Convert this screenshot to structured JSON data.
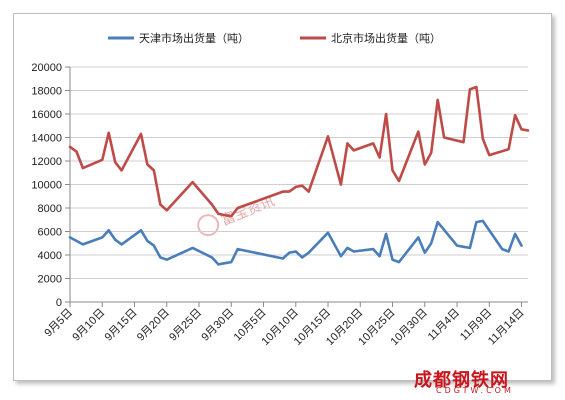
{
  "chart_data": {
    "type": "line",
    "title": "",
    "xlabel": "",
    "ylabel": "",
    "ylim": [
      0,
      20000
    ],
    "y_ticks": [
      0,
      2000,
      4000,
      6000,
      8000,
      10000,
      12000,
      14000,
      16000,
      18000,
      20000
    ],
    "x_tick_labels": [
      "9月5日",
      "9月10日",
      "9月15日",
      "9月20日",
      "9月25日",
      "9月30日",
      "10月5日",
      "10月10日",
      "10月15日",
      "10月20日",
      "10月25日",
      "10月30日",
      "11月4日",
      "11月9日",
      "11月14日"
    ],
    "x_start": "9月5日",
    "x_end": "11月15日",
    "grid": "horizontal",
    "legend_position": "top",
    "series": [
      {
        "name": "天津市场出货量（吨）",
        "color": "#4a7ebb",
        "x": [
          "9月5日",
          "9月7日",
          "9月10日",
          "9月11日",
          "9月12日",
          "9月13日",
          "9月16日",
          "9月17日",
          "9月18日",
          "9月19日",
          "9月20日",
          "9月24日",
          "9月27日",
          "9月28日",
          "9月29日",
          "9月30日",
          "10月1日",
          "10月8日",
          "10月9日",
          "10月10日",
          "10月11日",
          "10月12日",
          "10月15日",
          "10月17日",
          "10月18日",
          "10月19日",
          "10月22日",
          "10月23日",
          "10月24日",
          "10月25日",
          "10月26日",
          "10月29日",
          "10月30日",
          "10月31日",
          "11月1日",
          "11月4日",
          "11月5日",
          "11月6日",
          "11月7日",
          "11月8日",
          "11月11日",
          "11月12日",
          "11月13日",
          "11月14日"
        ],
        "values": [
          5500,
          4900,
          5500,
          6100,
          5300,
          4900,
          6100,
          5200,
          4800,
          3800,
          3600,
          4600,
          3800,
          3200,
          3300,
          3400,
          4500,
          3700,
          4200,
          4300,
          3800,
          4200,
          5900,
          3900,
          4600,
          4300,
          4500,
          3900,
          5800,
          3600,
          3400,
          5500,
          4200,
          5000,
          6800,
          4800,
          4700,
          4600,
          6800,
          6900,
          4500,
          4300,
          5800,
          4800
        ]
      },
      {
        "name": "北京市场出货量（吨）",
        "color": "#be4b48",
        "x": [
          "9月5日",
          "9月6日",
          "9月7日",
          "9月10日",
          "9月11日",
          "9月12日",
          "9月13日",
          "9月16日",
          "9月17日",
          "9月18日",
          "9月19日",
          "9月20日",
          "9月24日",
          "9月27日",
          "9月28日",
          "9月29日",
          "9月30日",
          "10月1日",
          "10月8日",
          "10月9日",
          "10月10日",
          "10月11日",
          "10月12日",
          "10月15日",
          "10月17日",
          "10月18日",
          "10月19日",
          "10月22日",
          "10月23日",
          "10月24日",
          "10月25日",
          "10月26日",
          "10月29日",
          "10月30日",
          "10月31日",
          "11月1日",
          "11月2日",
          "11月5日",
          "11月6日",
          "11月7日",
          "11月8日",
          "11月9日",
          "11月12日",
          "11月13日",
          "11月14日",
          "11月15日"
        ],
        "values": [
          13200,
          12800,
          11400,
          12100,
          14400,
          11900,
          11200,
          14300,
          11700,
          11200,
          8300,
          7800,
          10200,
          8300,
          7500,
          7400,
          7300,
          8000,
          9400,
          9400,
          9800,
          9900,
          9400,
          14100,
          10000,
          13500,
          12900,
          13500,
          12300,
          16000,
          11200,
          10300,
          14500,
          11700,
          12700,
          17200,
          14000,
          13600,
          18100,
          18300,
          13900,
          12500,
          13000,
          15900,
          14700,
          14600
        ]
      }
    ]
  },
  "watermark": {
    "text": "富宝资讯"
  },
  "logo": {
    "main": "成都钢铁网",
    "sub": "CDGTW.COM"
  }
}
